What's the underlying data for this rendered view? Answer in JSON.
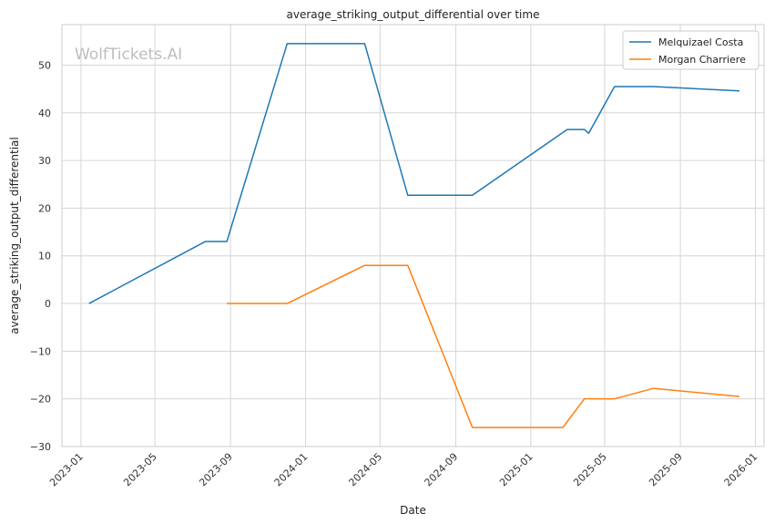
{
  "watermark": "WolfTickets.AI",
  "chart_data": {
    "type": "line",
    "title": "average_striking_output_differential over time",
    "xlabel": "Date",
    "ylabel": "average_striking_output_differential",
    "x_ticks": [
      "2023-01",
      "2023-05",
      "2023-09",
      "2024-01",
      "2024-05",
      "2024-09",
      "2025-01",
      "2025-05",
      "2025-09",
      "2026-01"
    ],
    "y_ticks": [
      -30,
      -20,
      -10,
      0,
      10,
      20,
      30,
      40,
      50
    ],
    "xlim": [
      "2022-12-01",
      "2026-01-15"
    ],
    "ylim": [
      -30,
      58.5
    ],
    "grid": true,
    "legend_position": "top-right",
    "series": [
      {
        "name": "Melquizael Costa",
        "color": "#1f77b4",
        "points": [
          [
            "2023-01-14",
            0
          ],
          [
            "2023-07-22",
            13
          ],
          [
            "2023-08-26",
            13
          ],
          [
            "2023-12-02",
            54.5
          ],
          [
            "2024-04-06",
            54.5
          ],
          [
            "2024-06-15",
            22.7
          ],
          [
            "2024-09-28",
            22.7
          ],
          [
            "2025-03-01",
            36.5
          ],
          [
            "2025-03-29",
            36.5
          ],
          [
            "2025-04-05",
            35.7
          ],
          [
            "2025-05-17",
            45.5
          ],
          [
            "2025-07-19",
            45.5
          ],
          [
            "2025-12-06",
            44.6
          ]
        ]
      },
      {
        "name": "Morgan Charriere",
        "color": "#ff7f0e",
        "points": [
          [
            "2023-08-26",
            0
          ],
          [
            "2023-12-02",
            0
          ],
          [
            "2024-04-06",
            8
          ],
          [
            "2024-06-15",
            8
          ],
          [
            "2024-09-28",
            -26
          ],
          [
            "2025-02-22",
            -26
          ],
          [
            "2025-03-29",
            -20
          ],
          [
            "2025-05-17",
            -20
          ],
          [
            "2025-07-19",
            -17.8
          ],
          [
            "2025-12-06",
            -19.5
          ]
        ]
      }
    ]
  }
}
